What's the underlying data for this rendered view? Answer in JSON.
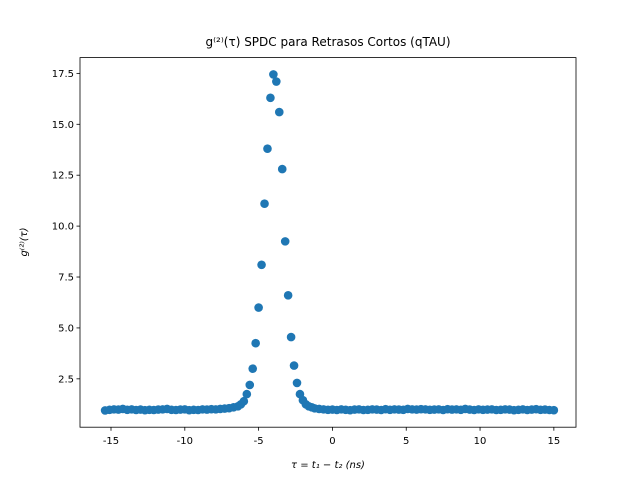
{
  "chart_data": {
    "type": "scatter",
    "title": "g⁽²⁾(τ) SPDC para Retrasos Cortos (qTAU)",
    "x_label": "τ = t₁ − t₂ (ns)",
    "y_label": "g⁽²⁾(τ)",
    "color": "#1f77b4",
    "grid": false,
    "xlim": [
      -17.1,
      16.5
    ],
    "ylim": [
      0.125,
      18.275
    ],
    "xticks": [
      -15,
      -10,
      -5,
      0,
      5,
      10,
      15
    ],
    "yticks": [
      2.5,
      {
        "value": 5,
        "label": "5.0"
      },
      7.5,
      {
        "value": 10,
        "label": "10.0"
      },
      12.5,
      {
        "value": 15,
        "label": "15.0"
      },
      17.5
    ],
    "x": [
      -15.4,
      -15.1,
      -14.8,
      -14.5,
      -14.2,
      -13.9,
      -13.6,
      -13.3,
      -13.0,
      -12.7,
      -12.4,
      -12.1,
      -11.8,
      -11.5,
      -11.2,
      -10.9,
      -10.6,
      -10.3,
      -10.0,
      -9.7,
      -9.4,
      -9.1,
      -8.8,
      -8.5,
      -8.2,
      -7.9,
      -7.6,
      -7.3,
      -7.0,
      -6.7,
      -6.4,
      -6.2,
      -6.0,
      -5.8,
      -5.6,
      -5.4,
      -5.2,
      -5.0,
      -4.8,
      -4.6,
      -4.4,
      -4.2,
      -4.0,
      -3.8,
      -3.6,
      -3.4,
      -3.2,
      -3.0,
      -2.8,
      -2.6,
      -2.4,
      -2.2,
      -2.0,
      -1.8,
      -1.6,
      -1.4,
      -1.2,
      -0.9,
      -0.6,
      -0.3,
      0.0,
      0.3,
      0.6,
      0.9,
      1.2,
      1.5,
      1.8,
      2.1,
      2.4,
      2.7,
      3.0,
      3.3,
      3.6,
      3.9,
      4.2,
      4.5,
      4.8,
      5.1,
      5.4,
      5.7,
      6.0,
      6.3,
      6.6,
      6.9,
      7.2,
      7.5,
      7.8,
      8.1,
      8.4,
      8.7,
      9.0,
      9.3,
      9.6,
      9.9,
      10.2,
      10.5,
      10.8,
      11.1,
      11.4,
      11.7,
      12.0,
      12.3,
      12.6,
      12.9,
      13.2,
      13.5,
      13.8,
      14.1,
      14.4,
      14.7,
      15.0
    ],
    "values": [
      0.95,
      0.98,
      1.0,
      0.99,
      1.02,
      0.98,
      1.0,
      0.97,
      0.99,
      0.96,
      0.98,
      0.97,
      0.99,
      1.0,
      1.02,
      0.98,
      0.97,
      0.99,
      1.0,
      0.96,
      0.98,
      0.97,
      1.0,
      0.99,
      1.01,
      1.0,
      1.02,
      1.04,
      1.06,
      1.1,
      1.15,
      1.25,
      1.4,
      1.75,
      2.2,
      3.0,
      4.25,
      6.0,
      8.1,
      11.1,
      13.8,
      16.3,
      17.45,
      17.1,
      15.6,
      12.8,
      9.25,
      6.6,
      4.55,
      3.15,
      2.3,
      1.75,
      1.45,
      1.25,
      1.15,
      1.1,
      1.05,
      1.02,
      1.0,
      0.98,
      0.99,
      0.97,
      1.0,
      0.98,
      0.96,
      0.99,
      1.0,
      0.97,
      0.98,
      1.0,
      0.99,
      0.97,
      1.01,
      0.98,
      1.0,
      0.99,
      0.98,
      1.02,
      1.0,
      0.99,
      1.01,
      1.0,
      0.98,
      0.99,
      1.0,
      0.97,
      1.01,
      0.99,
      1.0,
      0.98,
      1.02,
      0.99,
      0.97,
      1.0,
      0.98,
      0.99,
      1.0,
      0.97,
      0.98,
      1.0,
      0.99,
      0.96,
      0.98,
      1.0,
      0.97,
      0.99,
      1.01,
      0.98,
      0.99,
      0.97,
      0.96
    ]
  }
}
